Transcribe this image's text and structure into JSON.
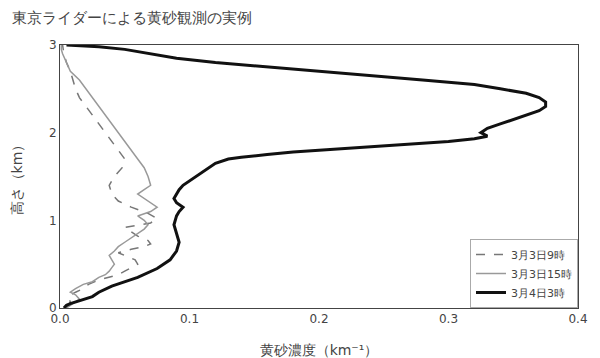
{
  "chart_data": {
    "type": "line",
    "title": "東京ライダーによる黄砂観測の実例",
    "xlabel": "黄砂濃度（km⁻¹）",
    "ylabel": "高さ（km）",
    "xlim": [
      0.0,
      0.4
    ],
    "ylim": [
      0.0,
      3.0
    ],
    "xticks": [
      {
        "value": 0.0,
        "label": "0.0"
      },
      0.1,
      0.2,
      0.3,
      0.4
    ],
    "yticks": [
      0,
      1,
      2,
      3
    ],
    "grid": false,
    "legend": "lower right",
    "series": [
      {
        "name": "3月3日9時",
        "color": "#777777",
        "line_style": "dashed",
        "x": [
          0.005,
          0.008,
          0.006,
          0.012,
          0.018,
          0.022,
          0.03,
          0.038,
          0.045,
          0.05,
          0.055,
          0.06,
          0.058,
          0.05,
          0.045,
          0.055,
          0.065,
          0.07,
          0.068,
          0.06,
          0.055,
          0.05,
          0.07,
          0.075,
          0.068,
          0.055,
          0.045,
          0.04,
          0.038,
          0.042,
          0.048,
          0.05,
          0.045,
          0.04,
          0.035,
          0.03,
          0.025,
          0.02,
          0.015,
          0.012,
          0.01,
          0.008,
          0.005,
          0.003,
          0.002
        ],
        "y": [
          0.0,
          0.07,
          0.13,
          0.18,
          0.22,
          0.27,
          0.32,
          0.35,
          0.38,
          0.42,
          0.46,
          0.5,
          0.55,
          0.6,
          0.63,
          0.67,
          0.7,
          0.73,
          0.77,
          0.82,
          0.87,
          0.92,
          0.97,
          1.02,
          1.08,
          1.15,
          1.22,
          1.3,
          1.4,
          1.5,
          1.6,
          1.7,
          1.8,
          1.9,
          2.0,
          2.1,
          2.2,
          2.3,
          2.4,
          2.5,
          2.6,
          2.7,
          2.8,
          2.9,
          3.0
        ]
      },
      {
        "name": "3月3日15時",
        "color": "#999999",
        "line_style": "solid",
        "x": [
          0.005,
          0.01,
          0.015,
          0.012,
          0.008,
          0.012,
          0.018,
          0.025,
          0.03,
          0.035,
          0.038,
          0.04,
          0.042,
          0.04,
          0.038,
          0.042,
          0.045,
          0.05,
          0.055,
          0.06,
          0.065,
          0.068,
          0.065,
          0.06,
          0.07,
          0.075,
          0.07,
          0.065,
          0.06,
          0.065,
          0.07,
          0.068,
          0.065,
          0.06,
          0.055,
          0.045,
          0.035,
          0.025,
          0.015,
          0.008,
          0.005,
          0.003,
          0.002,
          0.001,
          0.001
        ],
        "y": [
          0.0,
          0.05,
          0.1,
          0.15,
          0.18,
          0.22,
          0.27,
          0.3,
          0.35,
          0.38,
          0.42,
          0.46,
          0.5,
          0.55,
          0.6,
          0.65,
          0.7,
          0.75,
          0.8,
          0.85,
          0.9,
          0.95,
          1.0,
          1.05,
          1.1,
          1.15,
          1.2,
          1.25,
          1.3,
          1.35,
          1.4,
          1.5,
          1.6,
          1.7,
          1.8,
          2.0,
          2.2,
          2.4,
          2.6,
          2.7,
          2.8,
          2.85,
          2.9,
          2.95,
          3.0
        ]
      },
      {
        "name": "3月4日3時",
        "color": "#111111",
        "line_style": "solid",
        "x": [
          0.003,
          0.005,
          0.008,
          0.015,
          0.02,
          0.025,
          0.03,
          0.04,
          0.06,
          0.075,
          0.085,
          0.09,
          0.092,
          0.09,
          0.088,
          0.09,
          0.092,
          0.095,
          0.09,
          0.088,
          0.09,
          0.092,
          0.095,
          0.1,
          0.105,
          0.11,
          0.115,
          0.12,
          0.13,
          0.14,
          0.16,
          0.18,
          0.2,
          0.22,
          0.25,
          0.28,
          0.3,
          0.32,
          0.33,
          0.325,
          0.33,
          0.34,
          0.35,
          0.36,
          0.37,
          0.375,
          0.375,
          0.37,
          0.36,
          0.34,
          0.32,
          0.28,
          0.24,
          0.2,
          0.16,
          0.12,
          0.09,
          0.07,
          0.05,
          0.03,
          0.01,
          0.005
        ],
        "y": [
          0.0,
          0.03,
          0.05,
          0.08,
          0.1,
          0.13,
          0.18,
          0.25,
          0.35,
          0.45,
          0.55,
          0.65,
          0.75,
          0.85,
          0.95,
          1.05,
          1.1,
          1.15,
          1.2,
          1.25,
          1.3,
          1.35,
          1.4,
          1.45,
          1.5,
          1.55,
          1.6,
          1.65,
          1.7,
          1.72,
          1.75,
          1.78,
          1.8,
          1.82,
          1.85,
          1.88,
          1.9,
          1.93,
          1.96,
          2.0,
          2.05,
          2.1,
          2.15,
          2.2,
          2.25,
          2.3,
          2.35,
          2.4,
          2.45,
          2.5,
          2.55,
          2.6,
          2.65,
          2.7,
          2.75,
          2.8,
          2.85,
          2.9,
          2.95,
          2.98,
          3.0,
          3.0
        ]
      }
    ]
  }
}
